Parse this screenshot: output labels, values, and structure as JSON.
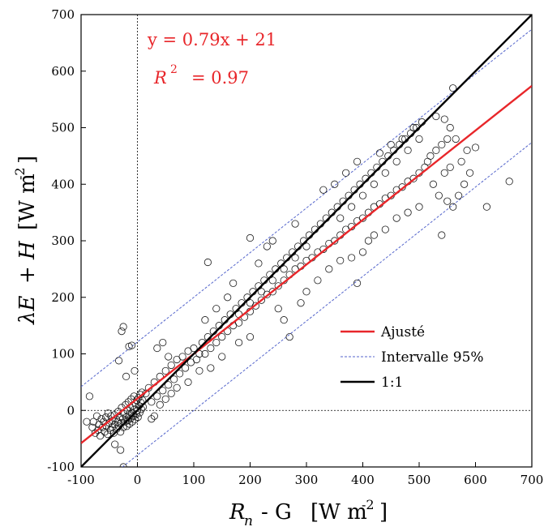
{
  "chart_data": {
    "type": "scatter",
    "xlabel": {
      "main": "R",
      "sub": "n",
      "rest": "- G",
      "units": "[W m",
      "exp": "-2",
      "close": "]"
    },
    "ylabel": {
      "lambda": "λE",
      "plus": "+",
      "h": "H",
      "units": "[W m",
      "exp": "-2",
      "close": "]"
    },
    "xlim": [
      -100,
      700
    ],
    "ylim": [
      -100,
      700
    ],
    "xticks": [
      -100,
      0,
      100,
      200,
      300,
      400,
      500,
      600,
      700
    ],
    "yticks": [
      -100,
      0,
      100,
      200,
      300,
      400,
      500,
      600,
      700
    ],
    "xtick_labels": [
      "-100",
      "0",
      "100",
      "200",
      "300",
      "400",
      "500",
      "600",
      "700"
    ],
    "ytick_labels": [
      "-100",
      "0",
      "100",
      "200",
      "300",
      "400",
      "500",
      "600",
      "700"
    ],
    "annotations": {
      "equation": "y = 0.79x + 21",
      "r2_label": "R",
      "r2_exp": "2",
      "r2_value": "= 0.97"
    },
    "fit": {
      "slope": 0.79,
      "intercept": 21,
      "color": "#e8262a"
    },
    "ci95_offset": 100,
    "one_to_one": {
      "slope": 1,
      "intercept": 0,
      "color": "#000000"
    },
    "legend": {
      "position": "lower-right",
      "entries": [
        {
          "label": "Ajusté",
          "color": "#e8262a",
          "style": "solid"
        },
        {
          "label": "Intervalle 95%",
          "color": "#5566cc",
          "style": "dashed"
        },
        {
          "label": "1:1",
          "color": "#000000",
          "style": "solid"
        }
      ]
    },
    "scatter": {
      "description_source": "points sampled around fit line",
      "points": [
        [
          -80,
          -30
        ],
        [
          -78,
          -20
        ],
        [
          -75,
          -40
        ],
        [
          -72,
          -10
        ],
        [
          -70,
          -35
        ],
        [
          -68,
          -25
        ],
        [
          -66,
          -45
        ],
        [
          -64,
          -15
        ],
        [
          -62,
          -30
        ],
        [
          -60,
          -20
        ],
        [
          -58,
          -38
        ],
        [
          -56,
          -12
        ],
        [
          -55,
          -28
        ],
        [
          -53,
          -42
        ],
        [
          -52,
          -5
        ],
        [
          -50,
          -22
        ],
        [
          -48,
          -35
        ],
        [
          -47,
          -10
        ],
        [
          -45,
          -30
        ],
        [
          -44,
          -18
        ],
        [
          -42,
          -40
        ],
        [
          -41,
          -8
        ],
        [
          -40,
          -25
        ],
        [
          -38,
          -15
        ],
        [
          -37,
          -33
        ],
        [
          -35,
          -20
        ],
        [
          -34,
          -2
        ],
        [
          -33,
          -28
        ],
        [
          -31,
          -12
        ],
        [
          -30,
          -38
        ],
        [
          -29,
          -22
        ],
        [
          -28,
          5
        ],
        [
          -26,
          -15
        ],
        [
          -25,
          -30
        ],
        [
          -24,
          -6
        ],
        [
          -22,
          -20
        ],
        [
          -21,
          10
        ],
        [
          -20,
          -12
        ],
        [
          -19,
          -28
        ],
        [
          -18,
          0
        ],
        [
          -17,
          -18
        ],
        [
          -16,
          15
        ],
        [
          -15,
          -8
        ],
        [
          -14,
          -24
        ],
        [
          -13,
          5
        ],
        [
          -12,
          -14
        ],
        [
          -11,
          20
        ],
        [
          -10,
          -4
        ],
        [
          -9,
          -20
        ],
        [
          -8,
          8
        ],
        [
          -7,
          -10
        ],
        [
          -6,
          25
        ],
        [
          -5,
          2
        ],
        [
          -4,
          -16
        ],
        [
          -3,
          12
        ],
        [
          -2,
          -6
        ],
        [
          -1,
          18
        ],
        [
          0,
          0
        ],
        [
          1,
          -12
        ],
        [
          2,
          22
        ],
        [
          3,
          8
        ],
        [
          4,
          -4
        ],
        [
          5,
          28
        ],
        [
          6,
          14
        ],
        [
          7,
          2
        ],
        [
          8,
          32
        ],
        [
          9,
          18
        ],
        [
          10,
          6
        ],
        [
          -85,
          25
        ],
        [
          -90,
          -20
        ],
        [
          -25,
          -100
        ],
        [
          -30,
          -70
        ],
        [
          -33,
          88
        ],
        [
          -28,
          140
        ],
        [
          -25,
          148
        ],
        [
          -40,
          -60
        ],
        [
          -20,
          60
        ],
        [
          -15,
          113
        ],
        [
          -10,
          115
        ],
        [
          -5,
          70
        ],
        [
          15,
          30
        ],
        [
          20,
          40
        ],
        [
          25,
          15
        ],
        [
          30,
          50
        ],
        [
          35,
          25
        ],
        [
          40,
          60
        ],
        [
          45,
          35
        ],
        [
          50,
          70
        ],
        [
          55,
          45
        ],
        [
          60,
          80
        ],
        [
          65,
          55
        ],
        [
          70,
          90
        ],
        [
          75,
          65
        ],
        [
          80,
          95
        ],
        [
          85,
          75
        ],
        [
          90,
          105
        ],
        [
          95,
          85
        ],
        [
          100,
          110
        ],
        [
          105,
          90
        ],
        [
          110,
          100
        ],
        [
          30,
          -10
        ],
        [
          40,
          10
        ],
        [
          50,
          20
        ],
        [
          60,
          30
        ],
        [
          25,
          -15
        ],
        [
          35,
          110
        ],
        [
          45,
          120
        ],
        [
          55,
          95
        ],
        [
          70,
          40
        ],
        [
          90,
          50
        ],
        [
          115,
          120
        ],
        [
          120,
          100
        ],
        [
          125,
          130
        ],
        [
          130,
          110
        ],
        [
          135,
          140
        ],
        [
          140,
          120
        ],
        [
          145,
          150
        ],
        [
          150,
          130
        ],
        [
          155,
          160
        ],
        [
          160,
          140
        ],
        [
          165,
          170
        ],
        [
          170,
          150
        ],
        [
          175,
          180
        ],
        [
          180,
          155
        ],
        [
          185,
          190
        ],
        [
          190,
          165
        ],
        [
          195,
          200
        ],
        [
          200,
          175
        ],
        [
          205,
          210
        ],
        [
          210,
          185
        ],
        [
          110,
          70
        ],
        [
          130,
          75
        ],
        [
          150,
          95
        ],
        [
          120,
          160
        ],
        [
          140,
          180
        ],
        [
          160,
          200
        ],
        [
          180,
          120
        ],
        [
          200,
          130
        ],
        [
          125,
          262
        ],
        [
          170,
          225
        ],
        [
          215,
          220
        ],
        [
          220,
          195
        ],
        [
          225,
          230
        ],
        [
          230,
          205
        ],
        [
          235,
          240
        ],
        [
          240,
          210
        ],
        [
          245,
          250
        ],
        [
          250,
          220
        ],
        [
          255,
          260
        ],
        [
          260,
          230
        ],
        [
          265,
          270
        ],
        [
          270,
          240
        ],
        [
          275,
          280
        ],
        [
          280,
          250
        ],
        [
          285,
          290
        ],
        [
          290,
          255
        ],
        [
          295,
          300
        ],
        [
          300,
          265
        ],
        [
          305,
          310
        ],
        [
          310,
          270
        ],
        [
          200,
          305
        ],
        [
          215,
          260
        ],
        [
          230,
          290
        ],
        [
          250,
          180
        ],
        [
          260,
          160
        ],
        [
          270,
          130
        ],
        [
          240,
          300
        ],
        [
          280,
          330
        ],
        [
          290,
          190
        ],
        [
          300,
          210
        ],
        [
          315,
          320
        ],
        [
          320,
          280
        ],
        [
          325,
          330
        ],
        [
          330,
          285
        ],
        [
          335,
          340
        ],
        [
          340,
          295
        ],
        [
          345,
          350
        ],
        [
          350,
          300
        ],
        [
          355,
          360
        ],
        [
          360,
          310
        ],
        [
          365,
          370
        ],
        [
          370,
          320
        ],
        [
          375,
          380
        ],
        [
          380,
          325
        ],
        [
          385,
          390
        ],
        [
          390,
          335
        ],
        [
          395,
          400
        ],
        [
          400,
          340
        ],
        [
          405,
          410
        ],
        [
          410,
          350
        ],
        [
          320,
          230
        ],
        [
          340,
          250
        ],
        [
          360,
          265
        ],
        [
          380,
          270
        ],
        [
          400,
          280
        ],
        [
          330,
          390
        ],
        [
          350,
          400
        ],
        [
          370,
          420
        ],
        [
          390,
          440
        ],
        [
          410,
          300
        ],
        [
          415,
          420
        ],
        [
          420,
          360
        ],
        [
          425,
          430
        ],
        [
          430,
          365
        ],
        [
          435,
          440
        ],
        [
          440,
          375
        ],
        [
          445,
          450
        ],
        [
          450,
          380
        ],
        [
          455,
          460
        ],
        [
          460,
          390
        ],
        [
          465,
          470
        ],
        [
          470,
          395
        ],
        [
          475,
          480
        ],
        [
          480,
          405
        ],
        [
          485,
          490
        ],
        [
          490,
          410
        ],
        [
          495,
          500
        ],
        [
          500,
          420
        ],
        [
          505,
          510
        ],
        [
          510,
          430
        ],
        [
          420,
          310
        ],
        [
          440,
          320
        ],
        [
          460,
          340
        ],
        [
          480,
          350
        ],
        [
          500,
          360
        ],
        [
          430,
          455
        ],
        [
          450,
          470
        ],
        [
          470,
          480
        ],
        [
          490,
          500
        ],
        [
          390,
          225
        ],
        [
          515,
          440
        ],
        [
          520,
          450
        ],
        [
          525,
          400
        ],
        [
          530,
          460
        ],
        [
          535,
          380
        ],
        [
          540,
          470
        ],
        [
          545,
          420
        ],
        [
          550,
          480
        ],
        [
          555,
          430
        ],
        [
          560,
          570
        ],
        [
          540,
          310
        ],
        [
          550,
          370
        ],
        [
          560,
          360
        ],
        [
          570,
          380
        ],
        [
          580,
          400
        ],
        [
          590,
          420
        ],
        [
          600,
          465
        ],
        [
          620,
          360
        ],
        [
          660,
          405
        ],
        [
          530,
          520
        ],
        [
          545,
          515
        ],
        [
          555,
          500
        ],
        [
          565,
          480
        ],
        [
          575,
          440
        ],
        [
          585,
          460
        ],
        [
          360,
          340
        ],
        [
          380,
          360
        ],
        [
          400,
          380
        ],
        [
          420,
          400
        ],
        [
          440,
          420
        ],
        [
          460,
          440
        ],
        [
          480,
          460
        ],
        [
          500,
          480
        ],
        [
          300,
          290
        ],
        [
          280,
          270
        ],
        [
          260,
          250
        ],
        [
          240,
          230
        ],
        [
          220,
          210
        ],
        [
          200,
          190
        ],
        [
          180,
          170
        ]
      ]
    }
  }
}
